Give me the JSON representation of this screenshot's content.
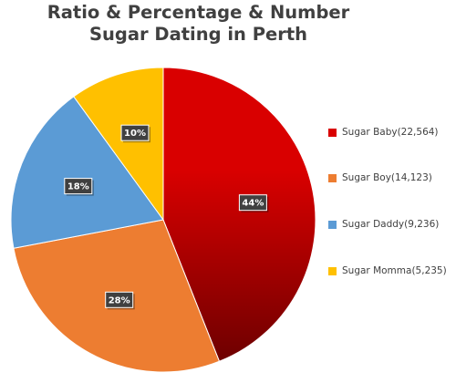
{
  "chart_data": {
    "type": "pie",
    "title_lines": [
      "Ratio & Percentage & Number",
      "Sugar Dating in Perth"
    ],
    "title": "Ratio & Percentage & Number Sugar Dating in Perth",
    "legend_position": "right",
    "slices": [
      {
        "name": "Sugar Baby(22,564)",
        "category": "Sugar Baby",
        "count": 22564,
        "value": 44,
        "label": "44%",
        "color": "#d90000",
        "color_dark": "#6e0000"
      },
      {
        "name": "Sugar Boy(14,123)",
        "category": "Sugar Boy",
        "count": 14123,
        "value": 28,
        "label": "28%",
        "color": "#ed7d31",
        "color_dark": "#ed7d31"
      },
      {
        "name": "Sugar Daddy(9,236)",
        "category": "Sugar Daddy",
        "count": 9236,
        "value": 18,
        "label": "18%",
        "color": "#5b9bd5",
        "color_dark": "#5b9bd5"
      },
      {
        "name": "Sugar Momma(5,235)",
        "category": "Sugar Momma",
        "count": 5235,
        "value": 10,
        "label": "10%",
        "color": "#ffc000",
        "color_dark": "#ffc000"
      }
    ]
  }
}
